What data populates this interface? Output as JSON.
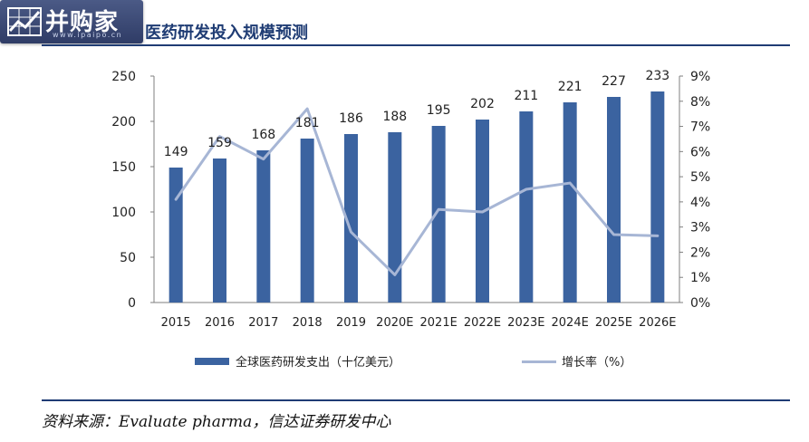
{
  "watermark": {
    "brand": "并购家",
    "url": "www.ipaipo.cn"
  },
  "header": {
    "title": "医药研发投入规模预测"
  },
  "legend": {
    "bar_label": "全球医药研发支出（十亿美元）",
    "line_label": "增长率（%）"
  },
  "source": "资料来源：Evaluate pharma，信达证券研发中心",
  "colors": {
    "bar": "#3b63a0",
    "line": "#a7b6d5",
    "title": "#1f3c74"
  },
  "chart_data": {
    "type": "bar",
    "title": "医药研发投入规模预测",
    "categories": [
      "2015",
      "2016",
      "2017",
      "2018",
      "2019",
      "2020E",
      "2021E",
      "2022E",
      "2023E",
      "2024E",
      "2025E",
      "2026E"
    ],
    "series": [
      {
        "name": "全球医药研发支出（十亿美元）",
        "type": "bar",
        "axis": "left",
        "values": [
          149,
          159,
          168,
          181,
          186,
          188,
          195,
          202,
          211,
          221,
          227,
          233
        ]
      },
      {
        "name": "增长率（%）",
        "type": "line",
        "axis": "right",
        "values": [
          4.1,
          6.6,
          5.7,
          7.7,
          2.8,
          1.1,
          3.7,
          3.6,
          4.5,
          4.75,
          2.7,
          2.65
        ]
      }
    ],
    "y_left": {
      "min": 0,
      "max": 250,
      "ticks": [
        "0",
        "50",
        "100",
        "150",
        "200",
        "250"
      ]
    },
    "y_right": {
      "min": 0,
      "max": 9,
      "ticks": [
        "0%",
        "1%",
        "2%",
        "3%",
        "4%",
        "5%",
        "6%",
        "7%",
        "8%",
        "9%"
      ]
    },
    "data_labels": [
      "149",
      "159",
      "168",
      "181",
      "186",
      "188",
      "195",
      "202",
      "211",
      "221",
      "227",
      "233"
    ],
    "grid": false,
    "legend_position": "bottom"
  }
}
